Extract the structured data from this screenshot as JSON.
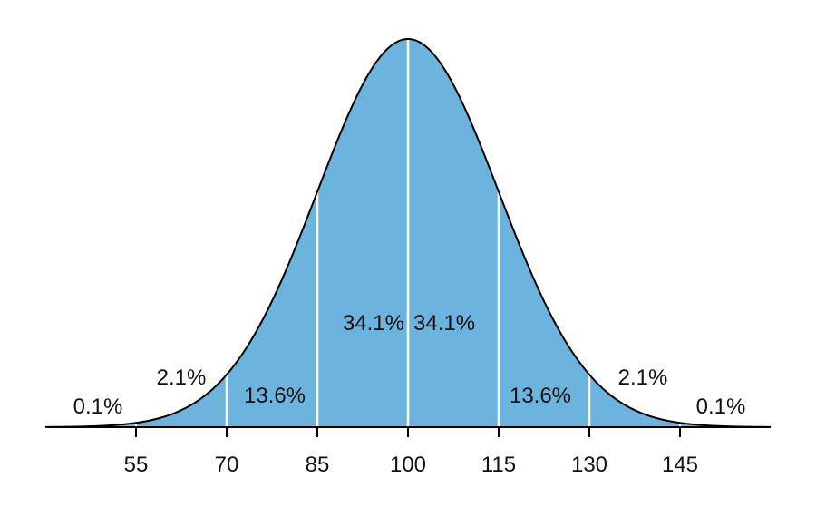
{
  "chart_data": {
    "type": "area",
    "title": "",
    "xlabel": "",
    "ylabel": "",
    "distribution": {
      "mean": 100,
      "sd": 15
    },
    "xlim": [
      40,
      160
    ],
    "x_ticks": [
      {
        "value": 55,
        "label": "55"
      },
      {
        "value": 70,
        "label": "70"
      },
      {
        "value": 85,
        "label": "85"
      },
      {
        "value": 100,
        "label": "100"
      },
      {
        "value": 115,
        "label": "115"
      },
      {
        "value": 130,
        "label": "130"
      },
      {
        "value": 145,
        "label": "145"
      }
    ],
    "bands": [
      {
        "from": 40,
        "to": 55,
        "label": "0.1%"
      },
      {
        "from": 55,
        "to": 70,
        "label": "2.1%"
      },
      {
        "from": 70,
        "to": 85,
        "label": "13.6%"
      },
      {
        "from": 85,
        "to": 100,
        "label": "34.1%"
      },
      {
        "from": 100,
        "to": 115,
        "label": "34.1%"
      },
      {
        "from": 115,
        "to": 130,
        "label": "13.6%"
      },
      {
        "from": 130,
        "to": 145,
        "label": "2.1%"
      },
      {
        "from": 145,
        "to": 160,
        "label": "0.1%"
      }
    ],
    "colors": {
      "fill": "#6cb4de",
      "curve": "#000000",
      "divider": "#ffffff",
      "axis": "#000000"
    }
  }
}
